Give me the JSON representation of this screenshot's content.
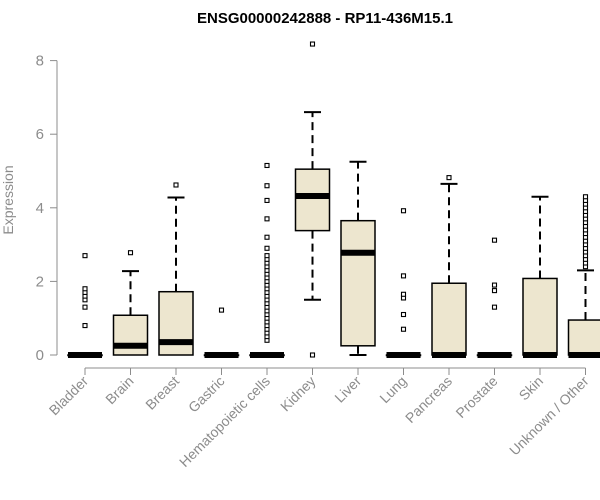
{
  "chart_data": {
    "type": "box",
    "title": "ENSG00000242888 - RP11-436M15.1",
    "xlabel": "",
    "ylabel": "Expression",
    "ylim": [
      0,
      8.6
    ],
    "yticks": [
      0,
      2,
      4,
      6,
      8
    ],
    "box_fill": "#ede6cf",
    "categories": [
      "Bladder",
      "Brain",
      "Breast",
      "Gastric",
      "Hematopoietic cells",
      "Kidney",
      "Liver",
      "Lung",
      "Pancreas",
      "Prostate",
      "Skin",
      "Unknown / Other"
    ],
    "boxes": [
      {
        "q1": 0,
        "median": 0,
        "q3": 0,
        "whisker_low": 0,
        "whisker_high": 0,
        "outliers": [
          0.8,
          1.3,
          1.5,
          1.6,
          1.7,
          1.8,
          2.7
        ]
      },
      {
        "q1": 0,
        "median": 0.25,
        "q3": 1.08,
        "whisker_low": 0,
        "whisker_high": 2.28,
        "outliers": [
          2.78
        ]
      },
      {
        "q1": 0,
        "median": 0.35,
        "q3": 1.72,
        "whisker_low": 0,
        "whisker_high": 4.28,
        "outliers": [
          4.62
        ]
      },
      {
        "q1": 0,
        "median": 0,
        "q3": 0,
        "whisker_low": 0,
        "whisker_high": 0,
        "outliers": [
          1.22
        ]
      },
      {
        "q1": 0,
        "median": 0,
        "q3": 0,
        "whisker_low": 0,
        "whisker_high": 0,
        "outliers": [
          0.4,
          0.5,
          0.6,
          0.7,
          0.8,
          0.9,
          1.0,
          1.1,
          1.2,
          1.3,
          1.4,
          1.5,
          1.6,
          1.7,
          1.8,
          1.9,
          2.0,
          2.1,
          2.2,
          2.3,
          2.4,
          2.5,
          2.6,
          2.7,
          2.9,
          3.2,
          3.7,
          4.2,
          4.6,
          5.15
        ]
      },
      {
        "q1": 3.38,
        "median": 4.32,
        "q3": 5.05,
        "whisker_low": 1.5,
        "whisker_high": 6.6,
        "outliers": [
          0.0,
          8.45
        ]
      },
      {
        "q1": 0.25,
        "median": 2.78,
        "q3": 3.65,
        "whisker_low": 0,
        "whisker_high": 5.25,
        "outliers": []
      },
      {
        "q1": 0,
        "median": 0,
        "q3": 0,
        "whisker_low": 0,
        "whisker_high": 0,
        "outliers": [
          0.7,
          1.1,
          1.55,
          1.65,
          2.15,
          3.92
        ]
      },
      {
        "q1": 0,
        "median": 0,
        "q3": 1.95,
        "whisker_low": 0,
        "whisker_high": 4.65,
        "outliers": [
          4.82
        ]
      },
      {
        "q1": 0,
        "median": 0,
        "q3": 0,
        "whisker_low": 0,
        "whisker_high": 0,
        "outliers": [
          1.3,
          1.75,
          1.9,
          3.12
        ]
      },
      {
        "q1": 0,
        "median": 0,
        "q3": 2.08,
        "whisker_low": 0,
        "whisker_high": 4.3,
        "outliers": []
      },
      {
        "q1": 0,
        "median": 0,
        "q3": 0.95,
        "whisker_low": 0,
        "whisker_high": 2.3,
        "outliers": [
          2.4,
          2.5,
          2.6,
          2.7,
          2.8,
          2.9,
          3.0,
          3.1,
          3.2,
          3.3,
          3.4,
          3.5,
          3.6,
          3.7,
          3.8,
          3.9,
          4.0,
          4.1,
          4.2,
          4.3
        ]
      }
    ]
  }
}
